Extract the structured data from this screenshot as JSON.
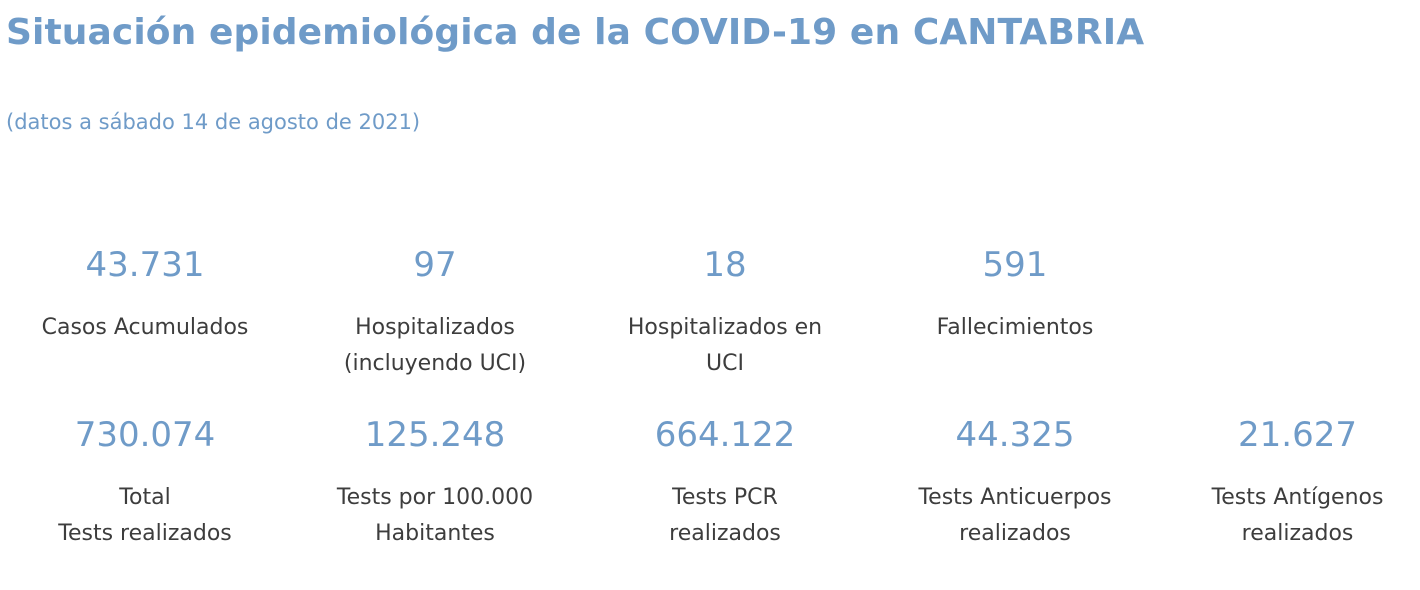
{
  "header": {
    "title": "Situación epidemiológica de la COVID-19 en CANTABRIA",
    "subtitle": "(datos a sábado 14 de agosto de 2021)"
  },
  "row1": [
    {
      "value": "43.731",
      "label_lines": [
        "Casos Acumulados"
      ]
    },
    {
      "value": "97",
      "label_lines": [
        "Hospitalizados",
        "(incluyendo UCI)"
      ]
    },
    {
      "value": "18",
      "label_lines": [
        "Hospitalizados en",
        "UCI"
      ]
    },
    {
      "value": "591",
      "label_lines": [
        "Fallecimientos"
      ]
    }
  ],
  "row2": [
    {
      "value": "730.074",
      "label_lines": [
        "Total",
        "Tests realizados"
      ]
    },
    {
      "value": "125.248",
      "label_lines": [
        "Tests por 100.000",
        "Habitantes"
      ]
    },
    {
      "value": "664.122",
      "label_lines": [
        "Tests PCR",
        "realizados"
      ]
    },
    {
      "value": "44.325",
      "label_lines": [
        "Tests Anticuerpos",
        "realizados"
      ]
    },
    {
      "value": "21.627",
      "label_lines": [
        "Tests Antígenos",
        "realizados"
      ]
    }
  ],
  "colors": {
    "accent": "#6f9bc8",
    "label_text": "#3d3d3d"
  }
}
